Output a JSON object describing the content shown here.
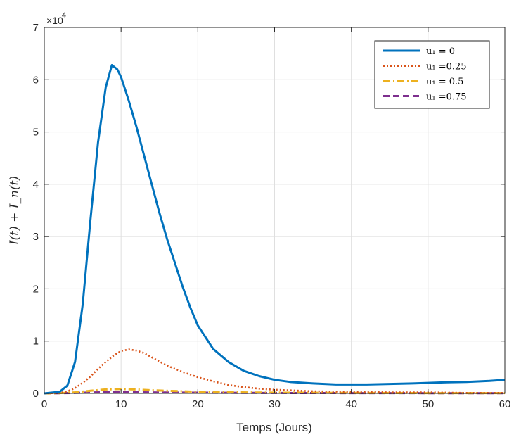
{
  "chart_data": {
    "type": "line",
    "title": "",
    "xlabel": "Temps (Jours)",
    "ylabel": "I(t) + I_n(t)",
    "xlim": [
      0,
      60
    ],
    "ylim": [
      0,
      70000
    ],
    "x_ticks": [
      0,
      10,
      20,
      30,
      40,
      50,
      60
    ],
    "y_ticks": [
      0,
      1,
      2,
      3,
      4,
      5,
      6,
      7
    ],
    "y_exponent_label": "×10",
    "y_exponent_power": "4",
    "grid": true,
    "legend_position": "top-right",
    "series": [
      {
        "name": "u₁ = 0",
        "color": "#0072BD",
        "style": "solid",
        "points": [
          [
            0,
            0
          ],
          [
            2,
            300
          ],
          [
            3,
            1500
          ],
          [
            4,
            6000
          ],
          [
            5,
            17000
          ],
          [
            6,
            33000
          ],
          [
            7,
            48000
          ],
          [
            8,
            58500
          ],
          [
            8.8,
            62800
          ],
          [
            9.5,
            62000
          ],
          [
            10,
            60500
          ],
          [
            11,
            56000
          ],
          [
            12,
            51000
          ],
          [
            13,
            45500
          ],
          [
            14,
            40000
          ],
          [
            15,
            34500
          ],
          [
            16,
            29500
          ],
          [
            17,
            25000
          ],
          [
            18,
            20500
          ],
          [
            19,
            16500
          ],
          [
            20,
            13000
          ],
          [
            22,
            8500
          ],
          [
            24,
            6000
          ],
          [
            26,
            4300
          ],
          [
            28,
            3300
          ],
          [
            30,
            2600
          ],
          [
            32,
            2200
          ],
          [
            35,
            1900
          ],
          [
            38,
            1700
          ],
          [
            40,
            1700
          ],
          [
            42,
            1700
          ],
          [
            45,
            1800
          ],
          [
            48,
            1900
          ],
          [
            50,
            2000
          ],
          [
            52,
            2100
          ],
          [
            55,
            2200
          ],
          [
            58,
            2400
          ],
          [
            60,
            2600
          ]
        ]
      },
      {
        "name": "u₁ =0.25",
        "color": "#D95319",
        "style": "dotted",
        "points": [
          [
            0,
            0
          ],
          [
            2,
            100
          ],
          [
            3,
            400
          ],
          [
            4,
            1000
          ],
          [
            5,
            2000
          ],
          [
            6,
            3200
          ],
          [
            7,
            4700
          ],
          [
            8,
            6000
          ],
          [
            9,
            7200
          ],
          [
            10,
            8100
          ],
          [
            11,
            8400
          ],
          [
            12,
            8200
          ],
          [
            13,
            7700
          ],
          [
            14,
            6900
          ],
          [
            15,
            6100
          ],
          [
            16,
            5300
          ],
          [
            18,
            4100
          ],
          [
            20,
            3100
          ],
          [
            22,
            2300
          ],
          [
            24,
            1600
          ],
          [
            26,
            1200
          ],
          [
            28,
            900
          ],
          [
            30,
            700
          ],
          [
            35,
            400
          ],
          [
            40,
            300
          ],
          [
            45,
            200
          ],
          [
            50,
            200
          ],
          [
            55,
            100
          ],
          [
            60,
            100
          ]
        ]
      },
      {
        "name": "u₁ = 0.5",
        "color": "#EDB120",
        "style": "dashdot",
        "points": [
          [
            0,
            0
          ],
          [
            2,
            50
          ],
          [
            4,
            200
          ],
          [
            6,
            500
          ],
          [
            8,
            750
          ],
          [
            10,
            850
          ],
          [
            11,
            800
          ],
          [
            12,
            750
          ],
          [
            14,
            600
          ],
          [
            16,
            500
          ],
          [
            18,
            400
          ],
          [
            20,
            300
          ],
          [
            25,
            200
          ],
          [
            30,
            150
          ],
          [
            40,
            100
          ],
          [
            50,
            50
          ],
          [
            60,
            50
          ]
        ]
      },
      {
        "name": "u₁ =0.75",
        "color": "#7E2F8E",
        "style": "dashed",
        "points": [
          [
            0,
            0
          ],
          [
            2,
            30
          ],
          [
            4,
            100
          ],
          [
            6,
            180
          ],
          [
            8,
            220
          ],
          [
            10,
            220
          ],
          [
            12,
            200
          ],
          [
            15,
            170
          ],
          [
            20,
            130
          ],
          [
            30,
            80
          ],
          [
            40,
            50
          ],
          [
            50,
            40
          ],
          [
            60,
            30
          ]
        ]
      }
    ]
  }
}
